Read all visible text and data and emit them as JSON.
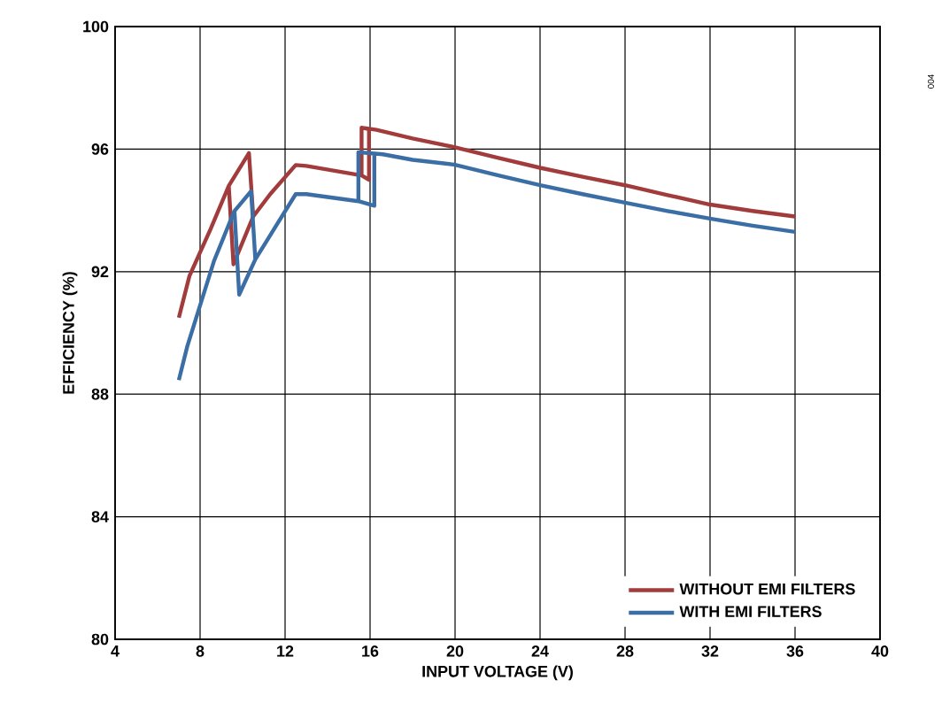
{
  "chart_data": {
    "type": "line",
    "xlabel": "INPUT VOLTAGE (V)",
    "ylabel": "EFFICIENCY (%)",
    "xlim": [
      4,
      40
    ],
    "xticks": [
      4,
      8,
      12,
      16,
      20,
      24,
      28,
      32,
      36,
      40
    ],
    "ylim": [
      80,
      100
    ],
    "yticks": [
      80,
      84,
      88,
      92,
      96,
      100
    ],
    "grid": true,
    "legend": "bottom right",
    "line_style": "solid",
    "marker": "none",
    "annotations": [
      "004"
    ],
    "series": [
      {
        "name": "WITHOUT EMI FILTERS",
        "color": "#a23b3b",
        "x": [
          7.0,
          7.5,
          8.5,
          9.35,
          10.3,
          10.5,
          9.57,
          9.35,
          9.57,
          10.5,
          11.3,
          12.5,
          13.0,
          15.6,
          15.6,
          15.95,
          15.95,
          15.6,
          15.6,
          16.3,
          18,
          20,
          22,
          24,
          26,
          28,
          30,
          32,
          34,
          36
        ],
        "values": [
          90.5,
          91.86,
          93.4,
          94.8,
          95.87,
          93.8,
          92.24,
          94.8,
          92.24,
          93.8,
          94.53,
          95.48,
          95.45,
          95.14,
          96.7,
          96.65,
          95.0,
          95.14,
          96.7,
          96.63,
          96.35,
          96.06,
          95.72,
          95.39,
          95.1,
          94.82,
          94.5,
          94.19,
          93.98,
          93.8
        ]
      },
      {
        "name": "WITH EMI FILTERS",
        "color": "#3b6ea5",
        "x": [
          7.0,
          7.4,
          8.65,
          9.6,
          10.4,
          10.6,
          9.84,
          9.62,
          9.84,
          10.6,
          11.4,
          12.5,
          13.0,
          15.45,
          15.45,
          16.2,
          16.2,
          15.45,
          15.45,
          16.6,
          18,
          20,
          22,
          24,
          26,
          28,
          30,
          32,
          34,
          36
        ],
        "values": [
          88.46,
          89.57,
          92.34,
          93.96,
          94.63,
          92.4,
          91.25,
          93.96,
          91.25,
          92.4,
          93.3,
          94.53,
          94.53,
          94.3,
          95.9,
          95.85,
          94.15,
          94.3,
          95.9,
          95.83,
          95.65,
          95.49,
          95.15,
          94.82,
          94.53,
          94.25,
          93.98,
          93.73,
          93.5,
          93.3
        ]
      }
    ]
  }
}
